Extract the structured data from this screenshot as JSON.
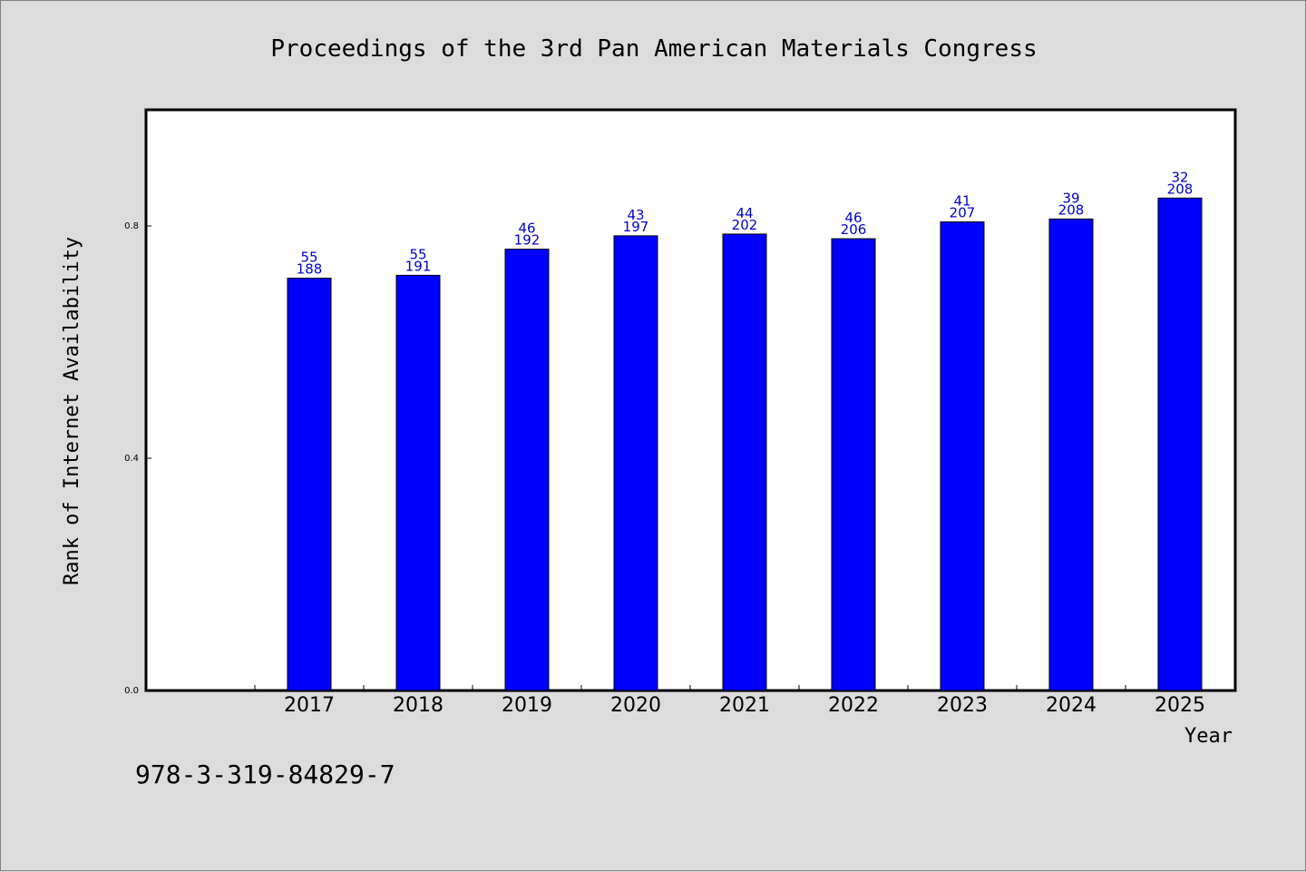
{
  "footer_text": "978-3-319-84829-7",
  "colors": {
    "background": "#dcdcdc",
    "plot_bg": "#ffffff",
    "bar": "#0000ff",
    "label": "#0000cc"
  },
  "chart_data": {
    "type": "bar",
    "title": "Proceedings of the 3rd Pan American Materials Congress",
    "xlabel": "Year",
    "ylabel": "Rank of Internet Availability",
    "categories": [
      "2017",
      "2018",
      "2019",
      "2020",
      "2021",
      "2022",
      "2023",
      "2024",
      "2025"
    ],
    "values": [
      0.71,
      0.715,
      0.76,
      0.783,
      0.786,
      0.778,
      0.807,
      0.812,
      0.848
    ],
    "bar_labels_top": [
      "55",
      "55",
      "46",
      "43",
      "44",
      "46",
      "41",
      "39",
      "32"
    ],
    "bar_labels_bottom": [
      "188",
      "191",
      "192",
      "197",
      "202",
      "206",
      "207",
      "208",
      "208"
    ],
    "yticks": [
      "0.0",
      "0.4",
      "0.8"
    ],
    "ytick_values": [
      0.0,
      0.4,
      0.8
    ],
    "ylim": [
      0,
      1.0
    ],
    "grid": false,
    "legend": "none"
  }
}
